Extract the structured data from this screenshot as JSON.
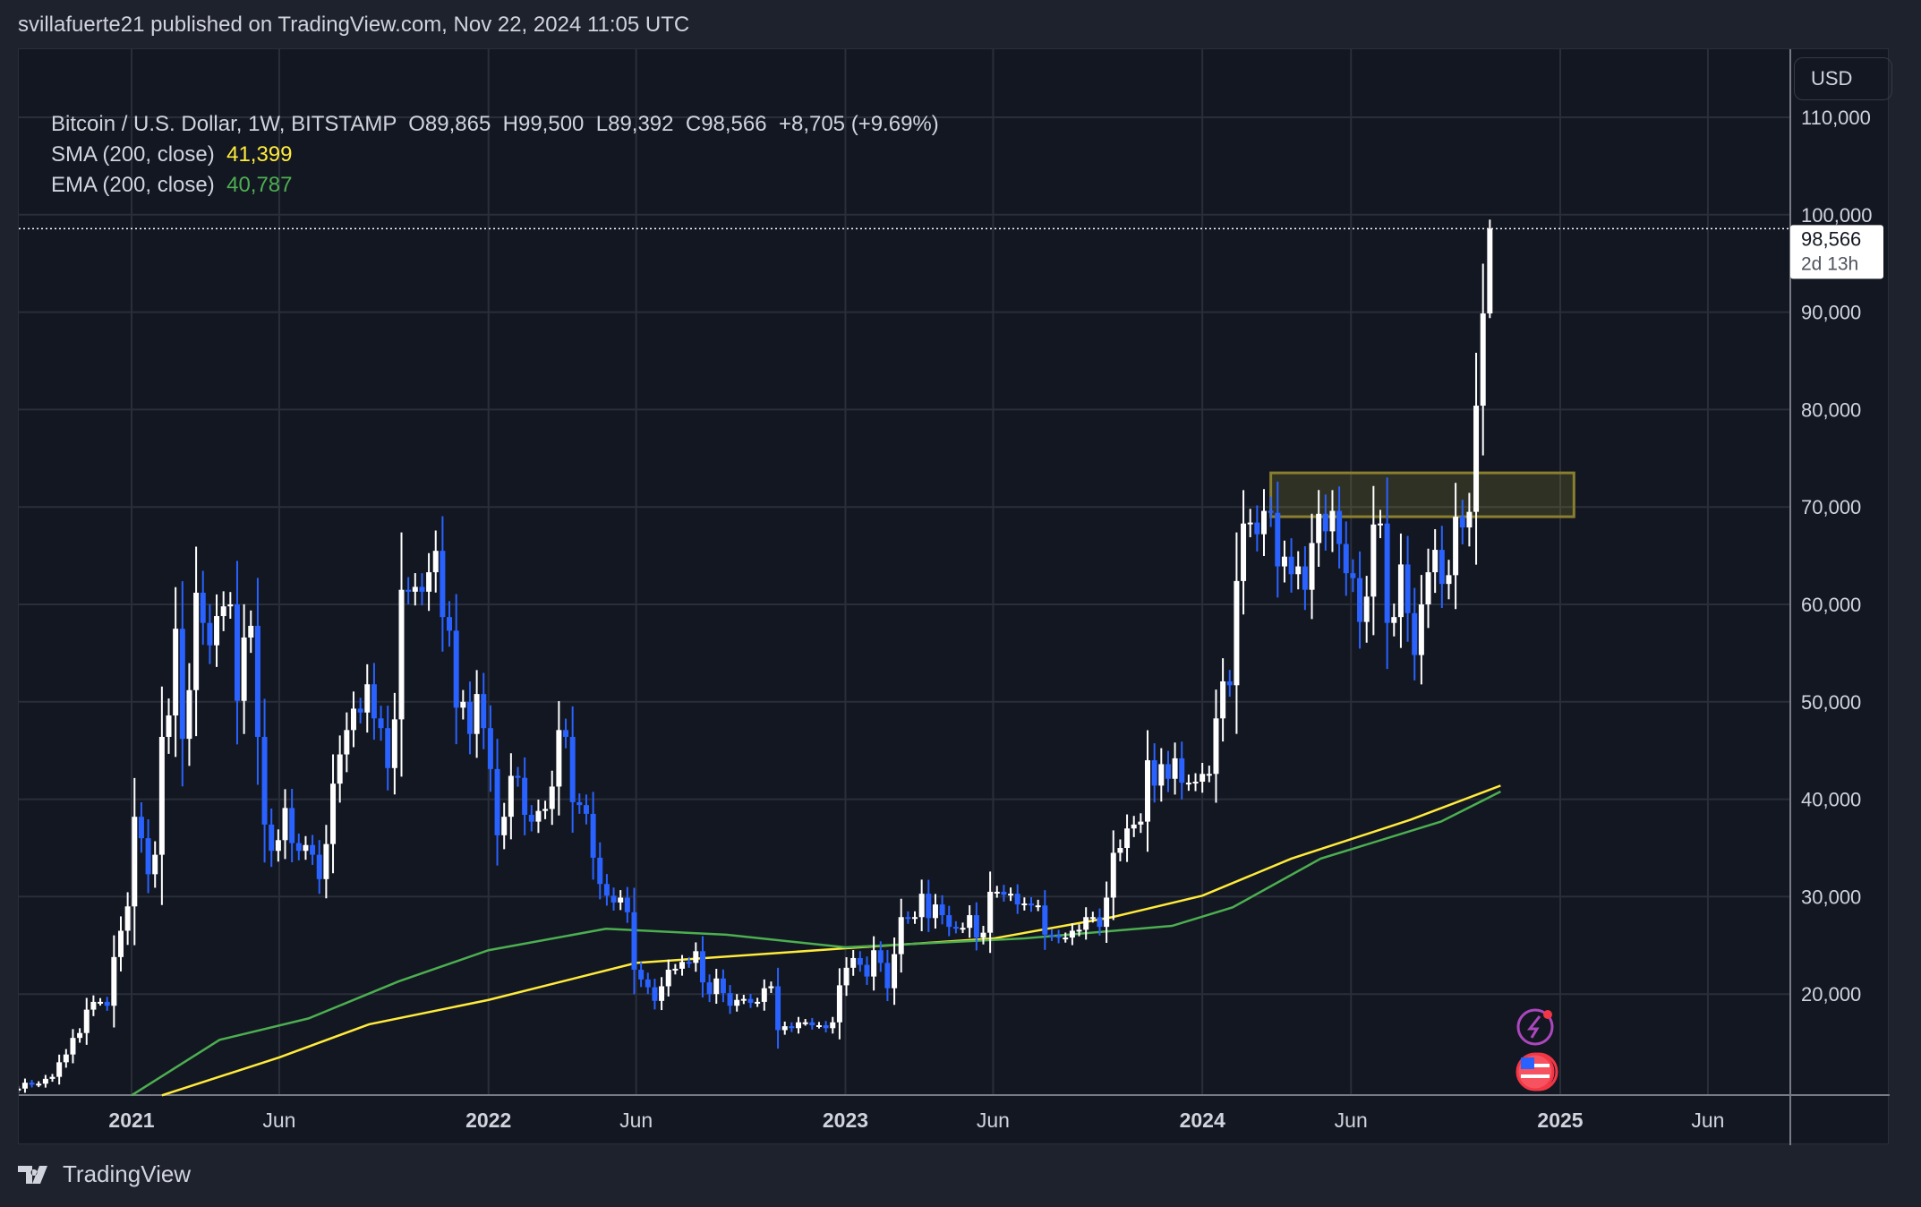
{
  "header": {
    "published": "svillafuerte21 published on TradingView.com, Nov 22, 2024 11:05 UTC"
  },
  "legend": {
    "symbol": "Bitcoin / U.S. Dollar, 1W, BITSTAMP",
    "open": "O89,865",
    "high": "H99,500",
    "low": "L89,392",
    "close": "C98,566",
    "change": "+8,705 (+9.69%)",
    "sma_label": "SMA (200, close)",
    "sma_value": "41,399",
    "ema_label": "EMA (200, close)",
    "ema_value": "40,787"
  },
  "currency": "USD",
  "price_tag": {
    "price": "98,566",
    "countdown": "2d 13h"
  },
  "footer": {
    "brand": "TradingView"
  },
  "colors": {
    "up": "#ffffff",
    "down": "#2962ff",
    "sma": "#ffeb3b",
    "ema": "#4caf50",
    "zone": "#ffeb3b",
    "background": "#131722"
  },
  "icons": [
    "lightning-event-icon",
    "us-flag-economic-event-icon"
  ],
  "chart_data": {
    "type": "candlestick",
    "interval": "1W",
    "x_start": "2020-09-07",
    "ylim": [
      8000,
      116000
    ],
    "y_ticks": [
      20000,
      30000,
      40000,
      50000,
      60000,
      70000,
      80000,
      90000,
      100000,
      110000
    ],
    "y_tick_labels": [
      "20,000",
      "30,000",
      "40,000",
      "50,000",
      "60,000",
      "70,000",
      "80,000",
      "90,000",
      "100,000",
      "110,000"
    ],
    "x_ticks": [
      {
        "date": "2021-01-01",
        "label": "2021",
        "major": true
      },
      {
        "date": "2021-06-01",
        "label": "Jun"
      },
      {
        "date": "2022-01-01",
        "label": "2022",
        "major": true
      },
      {
        "date": "2022-06-01",
        "label": "Jun"
      },
      {
        "date": "2023-01-01",
        "label": "2023",
        "major": true
      },
      {
        "date": "2023-06-01",
        "label": "Jun"
      },
      {
        "date": "2024-01-01",
        "label": "2024",
        "major": true
      },
      {
        "date": "2024-06-01",
        "label": "Jun"
      },
      {
        "date": "2025-01-01",
        "label": "2025",
        "major": true
      },
      {
        "date": "2025-06-01",
        "label": "Jun"
      }
    ],
    "closes": [
      10300,
      10900,
      10700,
      10800,
      11300,
      11500,
      13000,
      13800,
      15500,
      16000,
      18400,
      19200,
      19200,
      18800,
      23800,
      26500,
      29000,
      38200,
      36000,
      32300,
      34300,
      46400,
      48600,
      57500,
      46200,
      51200,
      61200,
      58100,
      55800,
      58800,
      59800,
      60000,
      50100,
      56600,
      57800,
      46400,
      37400,
      34700,
      35800,
      39100,
      35500,
      34700,
      35300,
      34300,
      31800,
      35400,
      41600,
      44600,
      47100,
      49300,
      48900,
      51800,
      48300,
      47300,
      43200,
      48200,
      61500,
      61300,
      61800,
      61300,
      63300,
      65500,
      58700,
      57300,
      49400,
      50000,
      46700,
      50800,
      47300,
      43100,
      36300,
      38200,
      42400,
      42200,
      38400,
      37700,
      38800,
      39000,
      41300,
      47100,
      46400,
      39700,
      39400,
      38500,
      34000,
      31300,
      30100,
      29400,
      29900,
      28400,
      22500,
      21500,
      20700,
      19300,
      20800,
      22500,
      22600,
      23300,
      23200,
      24400,
      21200,
      20000,
      21600,
      20100,
      18800,
      19400,
      19500,
      19100,
      19200,
      20600,
      20800,
      16300,
      16700,
      16500,
      17100,
      17100,
      16800,
      16800,
      16500,
      17100,
      20900,
      22700,
      23700,
      23000,
      21800,
      24500,
      23200,
      20600,
      24100,
      27900,
      27800,
      27900,
      30300,
      27800,
      29200,
      28100,
      26900,
      26800,
      26800,
      28100,
      25800,
      26300,
      30500,
      30500,
      30200,
      30300,
      29200,
      29300,
      29100,
      29100,
      26100,
      26000,
      25800,
      25800,
      26500,
      26600,
      27900,
      27900,
      26900,
      29900,
      34500,
      35000,
      37000,
      37400,
      37700,
      44000,
      41400,
      43600,
      42100,
      44200,
      41700,
      41700,
      41800,
      42600,
      42600,
      48300,
      52100,
      51700,
      62400,
      68300,
      68400,
      67200,
      69600,
      69400,
      63900,
      64900,
      63100,
      63900,
      61500,
      66300,
      69300,
      67500,
      69600,
      66200,
      63200,
      62700,
      58200,
      60800,
      68200,
      68300,
      58100,
      58700,
      64100,
      59100,
      54800,
      60000,
      63300,
      65600,
      62100,
      63000,
      69000,
      67900,
      69500,
      80400,
      89865
    ],
    "last_candle": {
      "open": 89865,
      "high": 99500,
      "low": 89392,
      "close": 98566,
      "change": 8705,
      "change_pct": 9.69
    },
    "series": [
      {
        "name": "SMA (200, close)",
        "color": "#ffeb3b",
        "points": [
          [
            "2021-02",
            9600
          ],
          [
            "2021-06",
            13500
          ],
          [
            "2021-09",
            16900
          ],
          [
            "2022-01",
            19400
          ],
          [
            "2022-06",
            23200
          ],
          [
            "2023-01",
            24700
          ],
          [
            "2023-06",
            25700
          ],
          [
            "2023-10",
            27900
          ],
          [
            "2024-01",
            30100
          ],
          [
            "2024-04",
            33900
          ],
          [
            "2024-08",
            37900
          ],
          [
            "2024-11",
            41399
          ]
        ]
      },
      {
        "name": "EMA (200, close)",
        "color": "#4caf50",
        "points": [
          [
            "2021-01",
            9600
          ],
          [
            "2021-04",
            15300
          ],
          [
            "2021-07",
            17500
          ],
          [
            "2021-10",
            21300
          ],
          [
            "2022-01",
            24500
          ],
          [
            "2022-05",
            26700
          ],
          [
            "2022-09",
            26100
          ],
          [
            "2023-01",
            24800
          ],
          [
            "2023-07",
            25700
          ],
          [
            "2023-12",
            27000
          ],
          [
            "2024-02",
            28900
          ],
          [
            "2024-05",
            33900
          ],
          [
            "2024-09",
            37700
          ],
          [
            "2024-11",
            40787
          ]
        ]
      }
    ],
    "annotations": [
      {
        "type": "rectangle",
        "from": "2024-03-11",
        "to": "2025-01-15",
        "price_low": 69000,
        "price_high": 73500
      },
      {
        "type": "hline-dotted",
        "price": 98566
      }
    ]
  }
}
